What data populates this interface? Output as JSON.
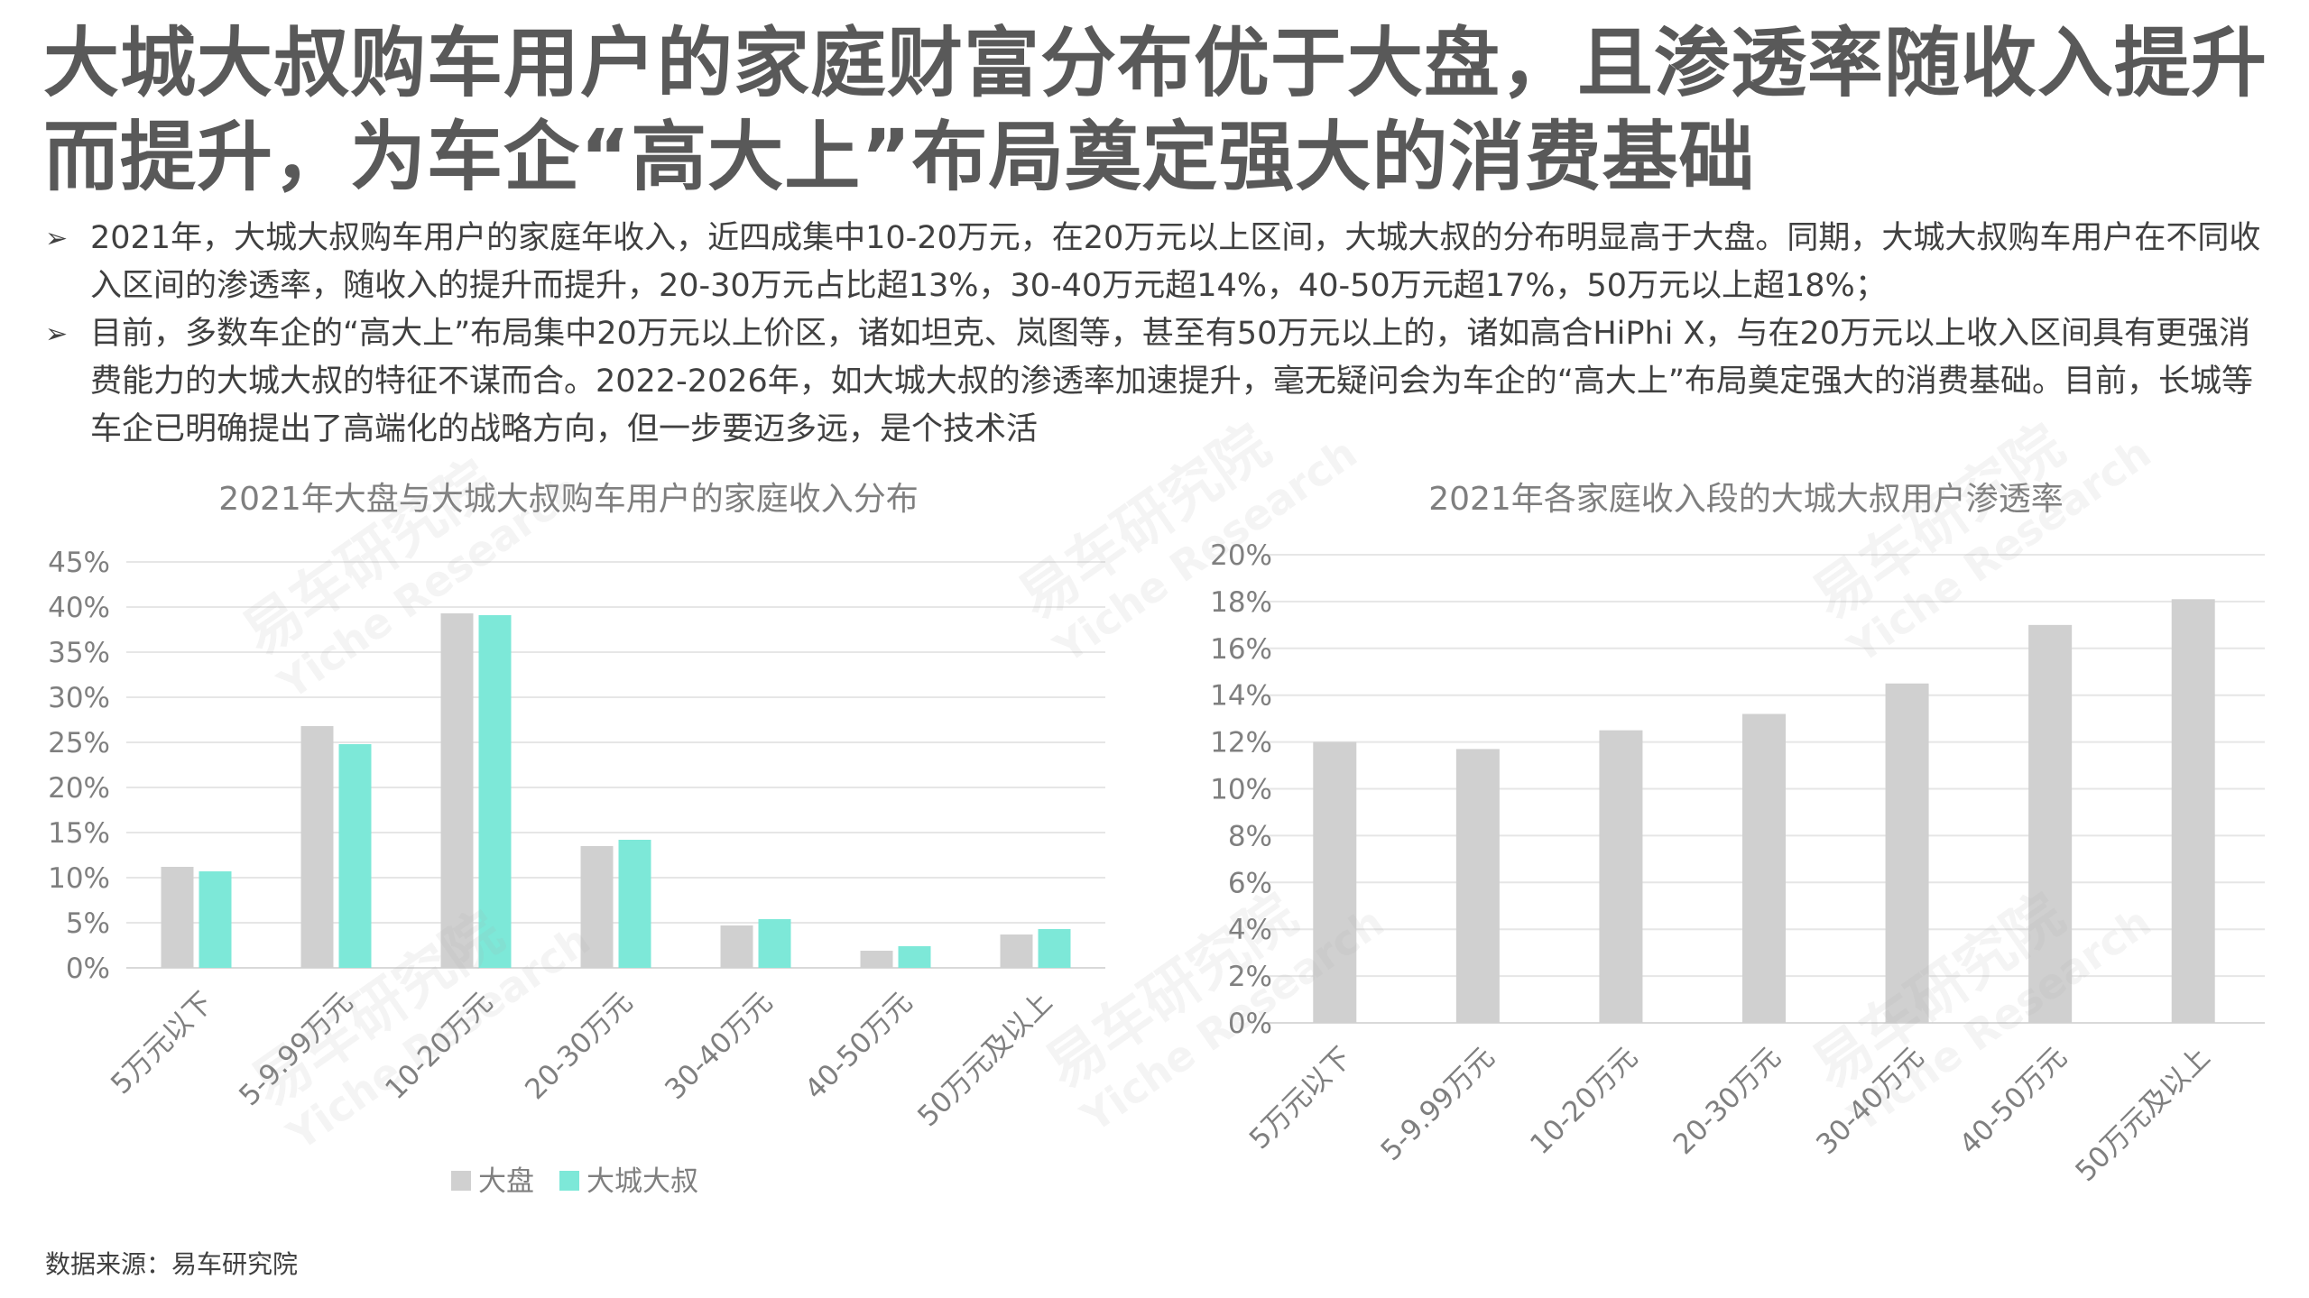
{
  "title": "大城大叔购车用户的家庭财富分布优于大盘，且渗透率随收入提升而提升，为车企“高大上”布局奠定强大的消费基础",
  "bullets": [
    "2021年，大城大叔购车用户的家庭年收入，近四成集中10-20万元，在20万元以上区间，大城大叔的分布明显高于大盘。同期，大城大叔购车用户在不同收入区间的渗透率，随收入的提升而提升，20-30万元占比超13%，30-40万元超14%，40-50万元超17%，50万元以上超18%；",
    "目前，多数车企的“高大上”布局集中20万元以上价区，诸如坦克、岚图等，甚至有50万元以上的，诸如高合HiPhi X，与在20万元以上收入区间具有更强消费能力的大城大叔的特征不谋而合。2022-2026年，如大城大叔的渗透率加速提升，毫无疑问会为车企的“高大上”布局奠定强大的消费基础。目前，长城等车企已明确提出了高端化的战略方向，但一步要迈多远，是个技术活"
  ],
  "bullet_marker": "➢",
  "watermark": {
    "cn": "易车研究院",
    "en": "Yiche Research"
  },
  "source": "数据来源：易车研究院",
  "colors": {
    "dapan": "#d0d0d0",
    "dachengdashu": "#7de8d8",
    "grid": "#e6e6e6",
    "axis": "#d9d9d9"
  },
  "chart_data": [
    {
      "type": "bar",
      "title": "2021年大盘与大城大叔购车用户的家庭收入分布",
      "categories": [
        "5万元以下",
        "5-9.99万元",
        "10-20万元",
        "20-30万元",
        "30-40万元",
        "40-50万元",
        "50万元及以上"
      ],
      "series": [
        {
          "name": "大盘",
          "values": [
            11.2,
            26.8,
            39.3,
            13.5,
            4.7,
            1.9,
            3.7
          ]
        },
        {
          "name": "大城大叔",
          "values": [
            10.7,
            24.8,
            39.1,
            14.2,
            5.4,
            2.4,
            4.3
          ]
        }
      ],
      "ylim": [
        0,
        45
      ],
      "yticks": [
        "0%",
        "5%",
        "10%",
        "15%",
        "20%",
        "25%",
        "30%",
        "35%",
        "40%",
        "45%"
      ],
      "grid": true,
      "legend": "bottom"
    },
    {
      "type": "bar",
      "title": "2021年各家庭收入段的大城大叔用户渗透率",
      "categories": [
        "5万元以下",
        "5-9.99万元",
        "10-20万元",
        "20-30万元",
        "30-40万元",
        "40-50万元",
        "50万元及以上"
      ],
      "series": [
        {
          "values": [
            12.0,
            11.7,
            12.5,
            13.2,
            14.5,
            17.0,
            18.1
          ]
        }
      ],
      "ylim": [
        0,
        20
      ],
      "yticks": [
        "0%",
        "2%",
        "4%",
        "6%",
        "8%",
        "10%",
        "12%",
        "14%",
        "16%",
        "18%",
        "20%"
      ],
      "grid": true
    }
  ]
}
